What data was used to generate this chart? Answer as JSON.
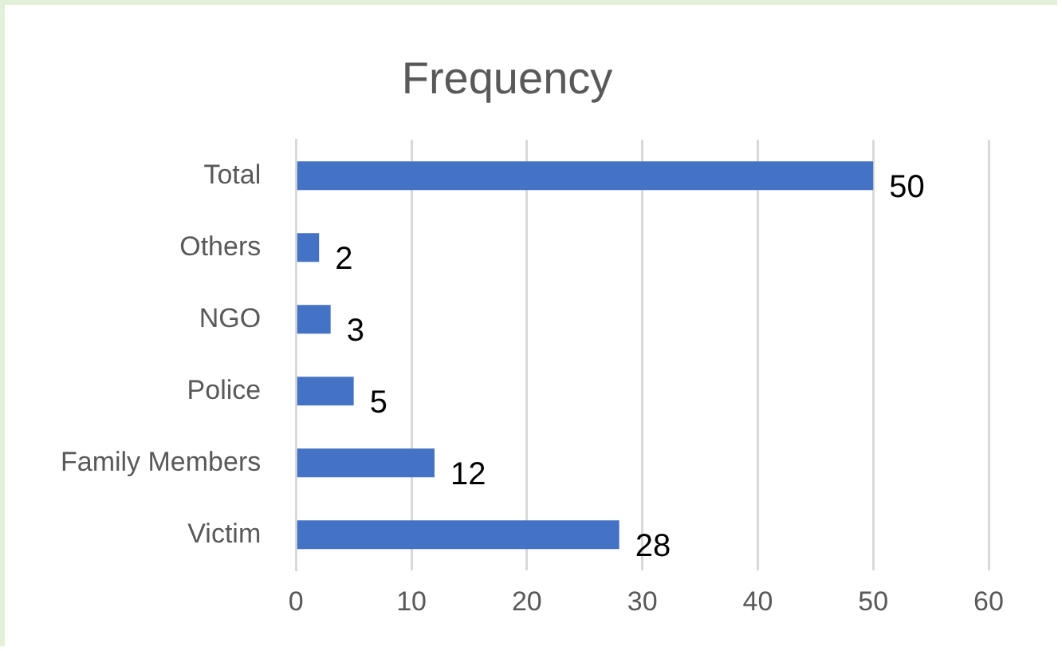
{
  "chart_data": {
    "type": "bar",
    "orientation": "horizontal",
    "title": "Frequency",
    "categories": [
      "Total",
      "Others",
      "NGO",
      "Police",
      "Family Members",
      "Victim"
    ],
    "values": [
      50,
      2,
      3,
      5,
      12,
      28
    ],
    "color": "#4472c4",
    "xlim": [
      0,
      60
    ],
    "xticks": [
      0,
      10,
      20,
      30,
      40,
      50,
      60
    ],
    "grid": "x",
    "data_labels": true,
    "legend": false
  }
}
